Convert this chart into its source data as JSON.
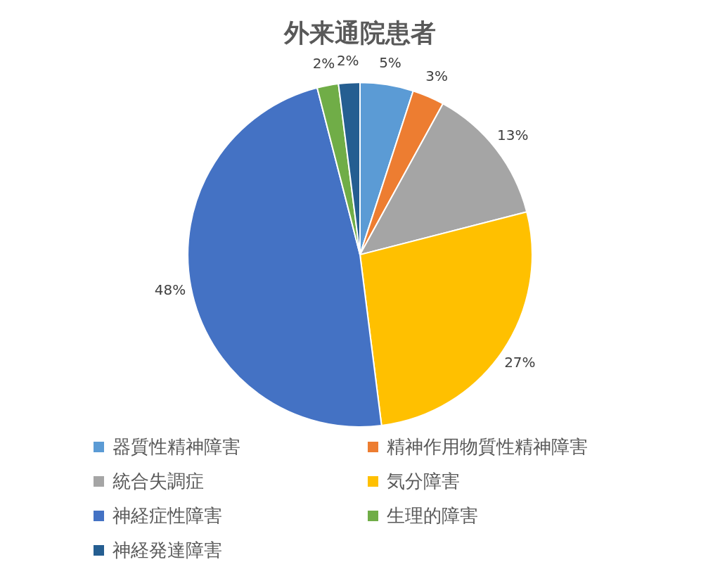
{
  "chart_data": {
    "type": "pie",
    "title": "外来通院患者",
    "categories": [
      "器質性精神障害",
      "精神作用物質性精神障害",
      "統合失調症",
      "気分障害",
      "神経症性障害",
      "生理的障害",
      "神経発達障害"
    ],
    "values": [
      5,
      3,
      13,
      27,
      48,
      2,
      2
    ],
    "value_labels": [
      "5%",
      "3%",
      "13%",
      "27%",
      "48%",
      "2%",
      "2%"
    ],
    "colors": [
      "#5b9bd5",
      "#ed7d31",
      "#a5a5a5",
      "#ffc000",
      "#4472c4",
      "#70ad47",
      "#255e91"
    ],
    "legend": "bottom"
  }
}
